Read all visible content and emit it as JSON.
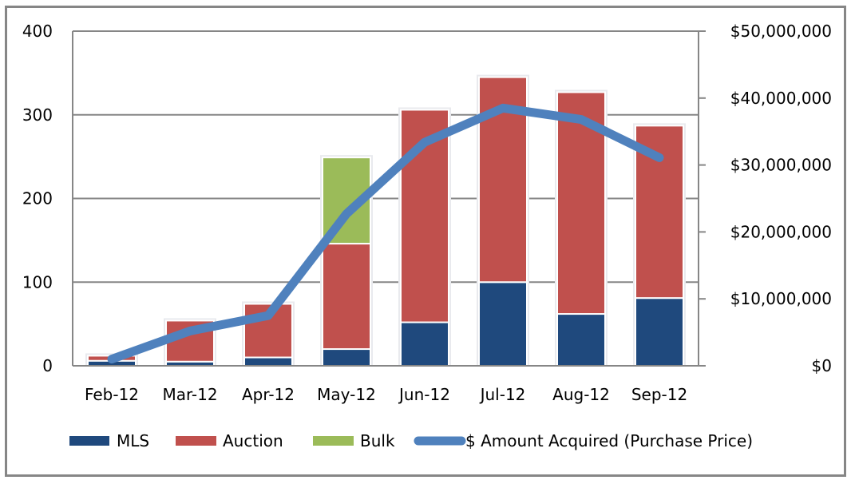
{
  "chart_data": {
    "type": "bar",
    "stacked": true,
    "title": "",
    "xlabel": "",
    "ylabel": "",
    "y2label": "",
    "categories": [
      "Feb-12",
      "Mar-12",
      "Apr-12",
      "May-12",
      "Jun-12",
      "Jul-12",
      "Aug-12",
      "Sep-12"
    ],
    "ylim": [
      0,
      400
    ],
    "yticks": [
      0,
      100,
      200,
      300,
      400
    ],
    "ytick_labels": [
      "0",
      "100",
      "200",
      "300",
      "400"
    ],
    "y2lim": [
      0,
      50000000
    ],
    "y2ticks": [
      0,
      10000000,
      20000000,
      30000000,
      40000000,
      50000000
    ],
    "y2tick_labels": [
      "$0",
      "$10,000,000",
      "$20,000,000",
      "$30,000,000",
      "$40,000,000",
      "$50,000,000"
    ],
    "grid": true,
    "legend_position": "bottom",
    "series": [
      {
        "name": "MLS",
        "type": "bar",
        "axis": "left",
        "color": "#1F497D",
        "values": [
          6,
          5,
          10,
          20,
          52,
          100,
          62,
          81
        ]
      },
      {
        "name": "Auction",
        "type": "bar",
        "axis": "left",
        "color": "#C0504D",
        "values": [
          6,
          49,
          64,
          126,
          254,
          245,
          265,
          206
        ]
      },
      {
        "name": "Bulk",
        "type": "bar",
        "axis": "left",
        "color": "#9BBB59",
        "values": [
          0,
          0,
          0,
          103,
          0,
          0,
          0,
          0
        ]
      },
      {
        "name": "$ Amount Acquired (Purchase Price)",
        "type": "line",
        "axis": "right",
        "color": "#4F81BD",
        "values": [
          1000000,
          5200000,
          7500000,
          22700000,
          33400000,
          38500000,
          36800000,
          31100000
        ]
      }
    ]
  }
}
